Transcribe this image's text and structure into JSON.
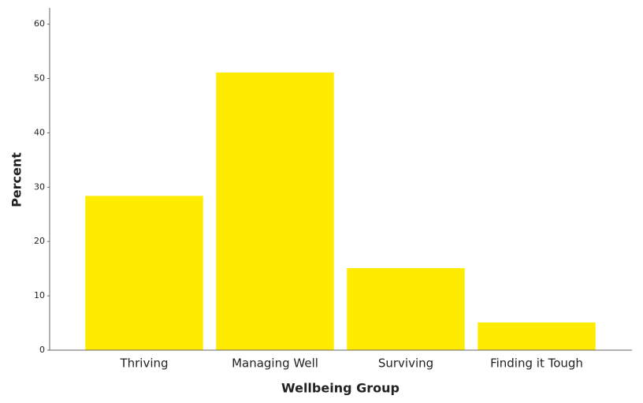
{
  "chart_data": {
    "type": "bar",
    "x_label": "Wellbeing Group",
    "y_label": "Percent",
    "categories": [
      "Thriving",
      "Managing Well",
      "Surviving",
      "Finding it Tough"
    ],
    "values": [
      28.4,
      51.1,
      15.1,
      5.1
    ],
    "color": "#ffeb00",
    "ylim": [
      0,
      63
    ],
    "yticks": [
      0,
      10,
      20,
      30,
      40,
      50,
      60
    ],
    "grid": false
  }
}
